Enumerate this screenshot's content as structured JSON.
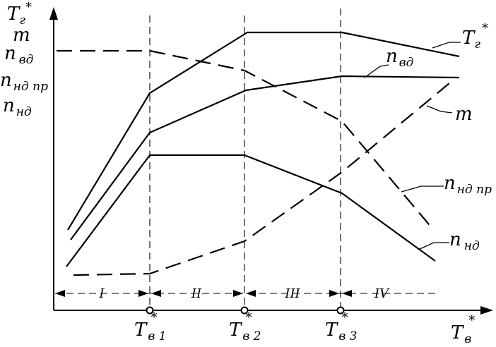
{
  "y_axis_labels": {
    "T_g": {
      "main": "T",
      "sub": "г",
      "sup": "*"
    },
    "m": {
      "main": "m"
    },
    "n_vd": {
      "main": "n",
      "sub": "вд"
    },
    "n_nd_pr": {
      "main": "n",
      "sub": "нд пр"
    },
    "n_nd": {
      "main": "n",
      "sub": "нд"
    }
  },
  "x_axis_label": {
    "main": "T",
    "sub": "в",
    "sup": "*"
  },
  "x_ticks": [
    {
      "main": "T",
      "sub": "в 1",
      "sup": "*"
    },
    {
      "main": "T",
      "sub": "в 2",
      "sup": "*"
    },
    {
      "main": "T",
      "sub": "в 3",
      "sup": "*"
    }
  ],
  "zones": [
    "I",
    "II",
    "III",
    "IV"
  ],
  "curve_labels": {
    "T_g": {
      "main": "T",
      "sub": "г",
      "sup": "*"
    },
    "n_vd": {
      "main": "n",
      "sub": "вд"
    },
    "m": {
      "main": "m"
    },
    "n_nd_pr": {
      "main": "n",
      "sub": "нд пр"
    },
    "n_nd": {
      "main": "n",
      "sub": "нд"
    }
  },
  "line_styles": {
    "T_g": "solid",
    "n_vd": "solid",
    "n_nd": "solid",
    "m": "dashed",
    "n_nd_pr": "dashed"
  },
  "colors": {
    "ink": "#000000",
    "background": "#ffffff"
  }
}
